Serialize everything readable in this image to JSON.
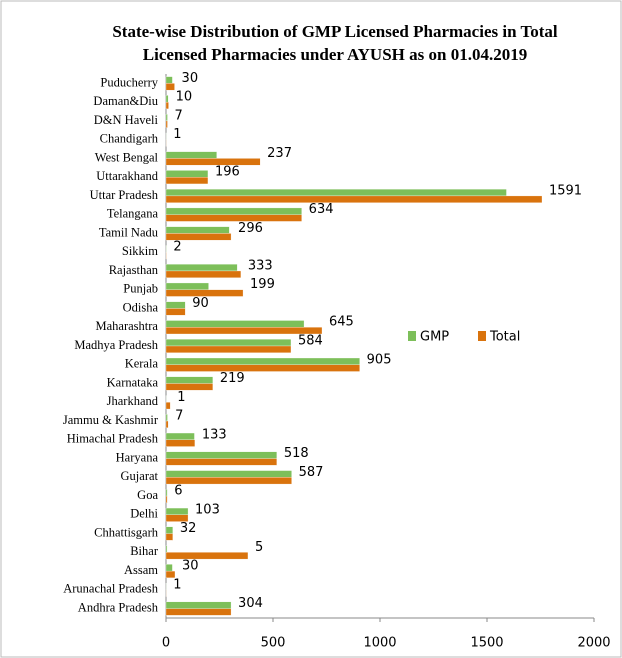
{
  "chart_data": {
    "type": "bar",
    "orientation": "horizontal",
    "title": [
      "State-wise Distribution  of GMP Licensed Pharmacies in  Total",
      "Licensed Pharmacies under  AYUSH as on 01.04.2019"
    ],
    "categories": [
      "Andhra Pradesh",
      "Arunachal Pradesh",
      "Assam",
      "Bihar",
      "Chhattisgarh",
      "Delhi",
      "Goa",
      "Gujarat",
      "Haryana",
      "Himachal Pradesh",
      "Jammu & Kashmir",
      "Jharkhand",
      "Karnataka",
      "Kerala",
      "Madhya Pradesh",
      "Maharashtra",
      "Odisha",
      "Punjab",
      "Rajasthan",
      "Sikkim",
      "Tamil Nadu",
      "Telangana",
      "Uttar Pradesh",
      "Uttarakhand",
      "West Bengal",
      "Chandigarh",
      "D&N Haveli",
      "Daman&Diu",
      "Puducherry"
    ],
    "series": [
      {
        "name": "GMP",
        "color": "#7dbf5a",
        "values": [
          304,
          1,
          30,
          5,
          32,
          103,
          6,
          587,
          518,
          133,
          7,
          1,
          219,
          905,
          584,
          645,
          90,
          199,
          333,
          2,
          296,
          634,
          1591,
          196,
          237,
          1,
          7,
          10,
          30
        ]
      },
      {
        "name": "Total",
        "color": "#d9730d",
        "values": [
          304,
          1,
          42,
          383,
          32,
          103,
          6,
          587,
          518,
          135,
          10,
          20,
          219,
          905,
          584,
          729,
          90,
          360,
          350,
          2,
          304,
          634,
          1757,
          196,
          440,
          1,
          7,
          12,
          40
        ]
      }
    ],
    "xlim": [
      0,
      2000
    ],
    "xticks": [
      0,
      500,
      1000,
      1500,
      2000
    ],
    "grid": false,
    "legend": "right"
  }
}
